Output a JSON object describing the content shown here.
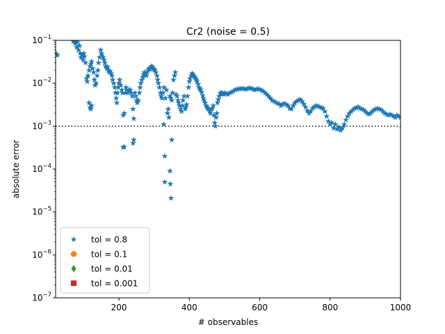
{
  "chart_data": {
    "type": "scatter",
    "title": "Cr2 (noise = 0.5)",
    "xlabel": "# observables",
    "ylabel": "absolute error",
    "xlim": [
      20,
      1000
    ],
    "ylim": [
      1e-07,
      0.1
    ],
    "yscale": "log",
    "grid": false,
    "legend_position": "lower-left",
    "x_ticks": [
      {
        "value": 200,
        "label": "200"
      },
      {
        "value": 400,
        "label": "400"
      },
      {
        "value": 600,
        "label": "600"
      },
      {
        "value": 800,
        "label": "800"
      },
      {
        "value": 1000,
        "label": "1000"
      }
    ],
    "y_ticks": [
      {
        "exp": -7,
        "label": "10",
        "sup": "−7"
      },
      {
        "exp": -6,
        "label": "10",
        "sup": "−6"
      },
      {
        "exp": -5,
        "label": "10",
        "sup": "−5"
      },
      {
        "exp": -4,
        "label": "10",
        "sup": "−4"
      },
      {
        "exp": -3,
        "label": "10",
        "sup": "−3"
      },
      {
        "exp": -2,
        "label": "10",
        "sup": "−2"
      },
      {
        "exp": -1,
        "label": "10",
        "sup": "−1"
      }
    ],
    "reference_line": {
      "y": 0.001,
      "style": "dotted",
      "color": "#000000"
    },
    "series": [
      {
        "name": "tol = 0.8",
        "marker": "star",
        "color": "#1f77b4",
        "points": [
          [
            22,
            0.048
          ],
          [
            25,
            0.045
          ],
          [
            70,
            0.095
          ],
          [
            75,
            0.085
          ],
          [
            78,
            0.1
          ],
          [
            80,
            0.07
          ],
          [
            82,
            0.09
          ],
          [
            85,
            0.06
          ],
          [
            88,
            0.075
          ],
          [
            90,
            0.05
          ],
          [
            92,
            0.04
          ],
          [
            95,
            0.045
          ],
          [
            98,
            0.035
          ],
          [
            100,
            0.05
          ],
          [
            102,
            0.042
          ],
          [
            105,
            0.03
          ],
          [
            108,
            0.013
          ],
          [
            110,
            0.011
          ],
          [
            112,
            0.015
          ],
          [
            115,
            0.02
          ],
          [
            118,
            0.025
          ],
          [
            120,
            0.028
          ],
          [
            122,
            0.032
          ],
          [
            125,
            0.022
          ],
          [
            128,
            0.018
          ],
          [
            115,
            0.0035
          ],
          [
            118,
            0.0027
          ],
          [
            120,
            0.0025
          ],
          [
            122,
            0.003
          ],
          [
            130,
            0.012
          ],
          [
            132,
            0.009
          ],
          [
            135,
            0.01
          ],
          [
            138,
            0.015
          ],
          [
            140,
            0.02
          ],
          [
            142,
            0.03
          ],
          [
            145,
            0.04
          ],
          [
            148,
            0.06
          ],
          [
            150,
            0.05
          ],
          [
            152,
            0.045
          ],
          [
            155,
            0.04
          ],
          [
            158,
            0.035
          ],
          [
            160,
            0.03
          ],
          [
            162,
            0.025
          ],
          [
            165,
            0.022
          ],
          [
            168,
            0.024
          ],
          [
            170,
            0.02
          ],
          [
            172,
            0.018
          ],
          [
            175,
            0.019
          ],
          [
            178,
            0.017
          ],
          [
            180,
            0.015
          ],
          [
            182,
            0.012
          ],
          [
            185,
            0.01
          ],
          [
            188,
            0.008
          ],
          [
            190,
            0.006
          ],
          [
            192,
            0.0045
          ],
          [
            194,
            0.0035
          ],
          [
            196,
            0.006
          ],
          [
            198,
            0.008
          ],
          [
            200,
            0.01
          ],
          [
            202,
            0.012
          ],
          [
            205,
            0.009
          ],
          [
            208,
            0.007
          ],
          [
            210,
            0.006
          ],
          [
            212,
            0.00032
          ],
          [
            215,
            0.00033
          ],
          [
            212,
            0.0018
          ],
          [
            215,
            0.002
          ],
          [
            218,
            0.006
          ],
          [
            220,
            0.008
          ],
          [
            222,
            0.007
          ],
          [
            225,
            0.006
          ],
          [
            228,
            0.007
          ],
          [
            230,
            0.0065
          ],
          [
            232,
            0.007
          ],
          [
            235,
            0.006
          ],
          [
            238,
            0.005
          ],
          [
            240,
            0.0004
          ],
          [
            242,
            0.00048
          ],
          [
            240,
            0.0025
          ],
          [
            242,
            0.0015
          ],
          [
            245,
            0.006
          ],
          [
            248,
            0.005
          ],
          [
            250,
            0.004
          ],
          [
            252,
            0.0035
          ],
          [
            255,
            0.004
          ],
          [
            258,
            0.006
          ],
          [
            260,
            0.008
          ],
          [
            262,
            0.01
          ],
          [
            265,
            0.012
          ],
          [
            268,
            0.014
          ],
          [
            270,
            0.016
          ],
          [
            272,
            0.018
          ],
          [
            275,
            0.017
          ],
          [
            278,
            0.015
          ],
          [
            280,
            0.018
          ],
          [
            282,
            0.02
          ],
          [
            285,
            0.022
          ],
          [
            288,
            0.021
          ],
          [
            290,
            0.023
          ],
          [
            292,
            0.025
          ],
          [
            295,
            0.024
          ],
          [
            298,
            0.022
          ],
          [
            300,
            0.021
          ],
          [
            302,
            0.02
          ],
          [
            305,
            0.018
          ],
          [
            308,
            0.015
          ],
          [
            310,
            0.012
          ],
          [
            312,
            0.01
          ],
          [
            315,
            0.008
          ],
          [
            318,
            0.006
          ],
          [
            320,
            0.005
          ],
          [
            322,
            0.0045
          ],
          [
            325,
            0.006
          ],
          [
            327,
            0.0011
          ],
          [
            328,
            0.008
          ],
          [
            330,
            0.0002
          ],
          [
            330,
            5e-05
          ],
          [
            332,
            0.0045
          ],
          [
            335,
            0.007
          ],
          [
            338,
            0.002
          ],
          [
            340,
            0.0025
          ],
          [
            342,
            0.0016
          ],
          [
            345,
            9e-05
          ],
          [
            346,
            4.5e-05
          ],
          [
            348,
            2.1e-05
          ],
          [
            350,
            0.00048
          ],
          [
            345,
            0.005
          ],
          [
            348,
            0.0045
          ],
          [
            350,
            0.004
          ],
          [
            352,
            0.006
          ],
          [
            355,
            0.012
          ],
          [
            358,
            0.015
          ],
          [
            360,
            0.018
          ],
          [
            362,
            0.0055
          ],
          [
            365,
            0.005
          ],
          [
            368,
            0.004
          ],
          [
            370,
            0.0035
          ],
          [
            372,
            0.003
          ],
          [
            375,
            0.0025
          ],
          [
            378,
            0.0022
          ],
          [
            380,
            0.003
          ],
          [
            382,
            0.004
          ],
          [
            385,
            0.005
          ],
          [
            388,
            0.0025
          ],
          [
            390,
            0.0028
          ],
          [
            392,
            0.0032
          ],
          [
            395,
            0.005
          ],
          [
            398,
            0.008
          ],
          [
            400,
            0.011
          ],
          [
            402,
            0.013
          ],
          [
            405,
            0.015
          ],
          [
            408,
            0.017
          ],
          [
            410,
            0.016
          ],
          [
            412,
            0.015
          ],
          [
            415,
            0.014
          ],
          [
            418,
            0.013
          ],
          [
            420,
            0.012
          ],
          [
            422,
            0.011
          ],
          [
            425,
            0.0095
          ],
          [
            428,
            0.008
          ],
          [
            430,
            0.0075
          ],
          [
            432,
            0.007
          ],
          [
            435,
            0.0062
          ],
          [
            438,
            0.0052
          ],
          [
            440,
            0.0045
          ],
          [
            442,
            0.004
          ],
          [
            445,
            0.0035
          ],
          [
            448,
            0.003
          ],
          [
            450,
            0.0028
          ],
          [
            452,
            0.0026
          ],
          [
            455,
            0.0025
          ],
          [
            458,
            0.0022
          ],
          [
            460,
            0.002
          ],
          [
            462,
            0.0024
          ],
          [
            465,
            0.0026
          ],
          [
            468,
            0.003
          ],
          [
            470,
            0.0018
          ],
          [
            472,
            0.0012
          ],
          [
            474,
            0.001
          ],
          [
            476,
            0.0016
          ],
          [
            478,
            0.002
          ],
          [
            480,
            0.0035
          ],
          [
            482,
            0.0042
          ],
          [
            485,
            0.005
          ],
          [
            488,
            0.006
          ],
          [
            490,
            0.0055
          ],
          [
            492,
            0.006
          ],
          [
            495,
            0.0058
          ],
          [
            498,
            0.0055
          ],
          [
            500,
            0.006
          ],
          [
            505,
            0.0057
          ],
          [
            510,
            0.0055
          ],
          [
            515,
            0.006
          ],
          [
            520,
            0.0062
          ],
          [
            525,
            0.0065
          ],
          [
            530,
            0.007
          ],
          [
            535,
            0.0072
          ],
          [
            540,
            0.0075
          ],
          [
            545,
            0.0074
          ],
          [
            550,
            0.0076
          ],
          [
            555,
            0.0075
          ],
          [
            560,
            0.0072
          ],
          [
            565,
            0.0075
          ],
          [
            570,
            0.0078
          ],
          [
            575,
            0.0076
          ],
          [
            580,
            0.0074
          ],
          [
            585,
            0.007
          ],
          [
            590,
            0.0072
          ],
          [
            595,
            0.0074
          ],
          [
            600,
            0.0072
          ],
          [
            605,
            0.0068
          ],
          [
            610,
            0.0065
          ],
          [
            615,
            0.006
          ],
          [
            620,
            0.0055
          ],
          [
            625,
            0.005
          ],
          [
            630,
            0.0045
          ],
          [
            635,
            0.004
          ],
          [
            640,
            0.0038
          ],
          [
            645,
            0.0036
          ],
          [
            650,
            0.0034
          ],
          [
            655,
            0.0033
          ],
          [
            660,
            0.003
          ],
          [
            665,
            0.0032
          ],
          [
            670,
            0.0034
          ],
          [
            675,
            0.0032
          ],
          [
            680,
            0.003
          ],
          [
            685,
            0.0026
          ],
          [
            690,
            0.0025
          ],
          [
            695,
            0.003
          ],
          [
            700,
            0.0035
          ],
          [
            705,
            0.0038
          ],
          [
            710,
            0.004
          ],
          [
            715,
            0.0042
          ],
          [
            720,
            0.0038
          ],
          [
            725,
            0.0033
          ],
          [
            730,
            0.0028
          ],
          [
            735,
            0.0023
          ],
          [
            740,
            0.002
          ],
          [
            745,
            0.0022
          ],
          [
            750,
            0.0026
          ],
          [
            755,
            0.0028
          ],
          [
            760,
            0.003
          ],
          [
            765,
            0.0029
          ],
          [
            770,
            0.0028
          ],
          [
            775,
            0.0027
          ],
          [
            780,
            0.0026
          ],
          [
            785,
            0.0022
          ],
          [
            790,
            0.0017
          ],
          [
            795,
            0.0013
          ],
          [
            800,
            0.0011
          ],
          [
            805,
            0.0012
          ],
          [
            810,
            0.0009
          ],
          [
            815,
            0.0011
          ],
          [
            820,
            0.00085
          ],
          [
            825,
            0.00095
          ],
          [
            830,
            0.0008
          ],
          [
            835,
            0.0009
          ],
          [
            840,
            0.0011
          ],
          [
            845,
            0.0014
          ],
          [
            850,
            0.0017
          ],
          [
            855,
            0.002
          ],
          [
            860,
            0.0022
          ],
          [
            865,
            0.0024
          ],
          [
            870,
            0.0026
          ],
          [
            875,
            0.0027
          ],
          [
            880,
            0.0028
          ],
          [
            885,
            0.0026
          ],
          [
            890,
            0.0025
          ],
          [
            895,
            0.0024
          ],
          [
            900,
            0.0022
          ],
          [
            905,
            0.002
          ],
          [
            910,
            0.0019
          ],
          [
            915,
            0.002
          ],
          [
            920,
            0.0022
          ],
          [
            925,
            0.0024
          ],
          [
            930,
            0.0025
          ],
          [
            935,
            0.0026
          ],
          [
            940,
            0.0025
          ],
          [
            945,
            0.0024
          ],
          [
            950,
            0.0022
          ],
          [
            955,
            0.002
          ],
          [
            960,
            0.0019
          ],
          [
            965,
            0.0018
          ],
          [
            970,
            0.0019
          ],
          [
            975,
            0.0018
          ],
          [
            980,
            0.0017
          ],
          [
            985,
            0.0016
          ],
          [
            990,
            0.0018
          ],
          [
            995,
            0.0017
          ],
          [
            1000,
            0.0016
          ]
        ]
      },
      {
        "name": "tol = 0.1",
        "marker": "circle",
        "color": "#ff7f0e",
        "points": []
      },
      {
        "name": "tol = 0.01",
        "marker": "diamond",
        "color": "#2ca02c",
        "points": []
      },
      {
        "name": "tol = 0.001",
        "marker": "square",
        "color": "#d62728",
        "points": []
      }
    ]
  }
}
